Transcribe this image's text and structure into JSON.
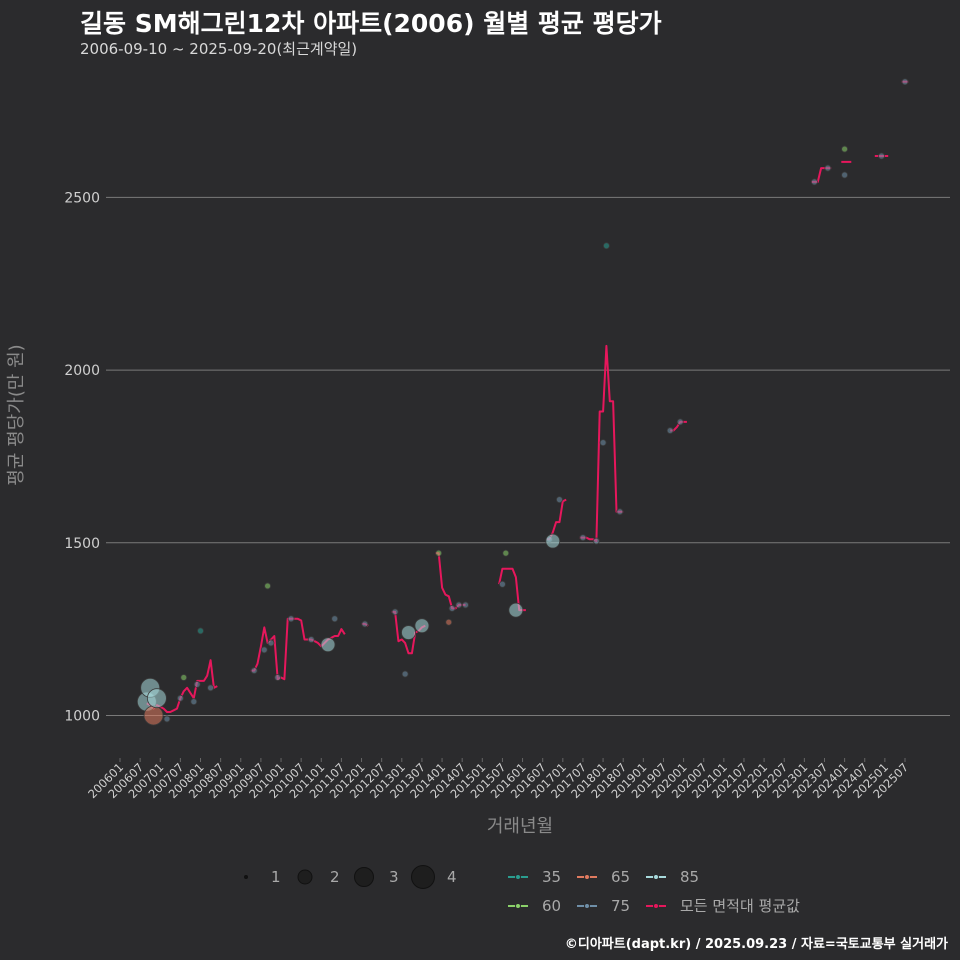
{
  "title": "길동 SM해그린12차 아파트(2006) 월별 평균 평당가",
  "subtitle": "2006-09-10 ~ 2025-09-20(최근계약일)",
  "credit": "©디아파트(dapt.kr) / 2025.09.23 / 자료=국토교통부 실거래가",
  "chart_data": {
    "type": "scatter",
    "xlabel": "거래년월",
    "ylabel": "평균 평당가(만 원)",
    "x_axis": {
      "type": "date-month",
      "range": [
        "2006-01",
        "2025-12"
      ]
    },
    "y_axis": {
      "ticks": [
        1000,
        1500,
        2000,
        2500
      ],
      "range": [
        900,
        2840
      ]
    },
    "x_tick_labels": [
      "200601",
      "200607",
      "200701",
      "200707",
      "200801",
      "200807",
      "200901",
      "200907",
      "201001",
      "201007",
      "201101",
      "201107",
      "201201",
      "201207",
      "201301",
      "201307",
      "201401",
      "201407",
      "201501",
      "201507",
      "201601",
      "201607",
      "201701",
      "201707",
      "201801",
      "201807",
      "201901",
      "201907",
      "202001",
      "202007",
      "202101",
      "202107",
      "202201",
      "202207",
      "202301",
      "202307",
      "202401",
      "202407",
      "202501",
      "202507"
    ],
    "grid": true,
    "size_legend": {
      "title": "",
      "values": [
        1,
        2,
        3,
        4
      ]
    },
    "series_colors": {
      "35": "#2a9d8f",
      "60": "#8bd16a",
      "65": "#e07a5f",
      "75": "#6f8fa8",
      "85": "#a8dadc",
      "avg": "#e6175c"
    },
    "legend_labels": {
      "35": "35",
      "60": "60",
      "65": "65",
      "75": "75",
      "85": "85",
      "avg": "모든 면적대 평균값"
    },
    "scatter_points": [
      {
        "d": "2006-09",
        "y": 1040,
        "s": "85",
        "n": 3
      },
      {
        "d": "2006-10",
        "y": 1080,
        "s": "85",
        "n": 3
      },
      {
        "d": "2006-11",
        "y": 1000,
        "s": "65",
        "n": 3
      },
      {
        "d": "2006-12",
        "y": 1050,
        "s": "85",
        "n": 3
      },
      {
        "d": "2007-03",
        "y": 990,
        "s": "75",
        "n": 1
      },
      {
        "d": "2007-07",
        "y": 1050,
        "s": "75",
        "n": 1
      },
      {
        "d": "2007-08",
        "y": 1110,
        "s": "60",
        "n": 1
      },
      {
        "d": "2007-11",
        "y": 1040,
        "s": "75",
        "n": 1
      },
      {
        "d": "2007-12",
        "y": 1090,
        "s": "75",
        "n": 1
      },
      {
        "d": "2008-01",
        "y": 1245,
        "s": "35",
        "n": 1
      },
      {
        "d": "2008-04",
        "y": 1080,
        "s": "75",
        "n": 1
      },
      {
        "d": "2009-05",
        "y": 1130,
        "s": "75",
        "n": 1
      },
      {
        "d": "2009-08",
        "y": 1190,
        "s": "75",
        "n": 1
      },
      {
        "d": "2009-09",
        "y": 1375,
        "s": "60",
        "n": 1
      },
      {
        "d": "2009-10",
        "y": 1210,
        "s": "75",
        "n": 1
      },
      {
        "d": "2009-12",
        "y": 1110,
        "s": "75",
        "n": 1
      },
      {
        "d": "2010-04",
        "y": 1280,
        "s": "75",
        "n": 1
      },
      {
        "d": "2010-10",
        "y": 1220,
        "s": "75",
        "n": 1
      },
      {
        "d": "2011-03",
        "y": 1205,
        "s": "85",
        "n": 2
      },
      {
        "d": "2011-05",
        "y": 1280,
        "s": "75",
        "n": 1
      },
      {
        "d": "2012-02",
        "y": 1265,
        "s": "75",
        "n": 1
      },
      {
        "d": "2012-11",
        "y": 1300,
        "s": "75",
        "n": 1
      },
      {
        "d": "2013-02",
        "y": 1120,
        "s": "75",
        "n": 1
      },
      {
        "d": "2013-03",
        "y": 1240,
        "s": "85",
        "n": 2
      },
      {
        "d": "2013-07",
        "y": 1260,
        "s": "85",
        "n": 2
      },
      {
        "d": "2013-12",
        "y": 1470,
        "s": "60",
        "n": 1
      },
      {
        "d": "2014-03",
        "y": 1270,
        "s": "65",
        "n": 1
      },
      {
        "d": "2014-04",
        "y": 1310,
        "s": "75",
        "n": 1
      },
      {
        "d": "2014-06",
        "y": 1320,
        "s": "75",
        "n": 1
      },
      {
        "d": "2014-08",
        "y": 1320,
        "s": "75",
        "n": 1
      },
      {
        "d": "2015-07",
        "y": 1380,
        "s": "75",
        "n": 1
      },
      {
        "d": "2015-08",
        "y": 1470,
        "s": "60",
        "n": 1
      },
      {
        "d": "2015-11",
        "y": 1305,
        "s": "85",
        "n": 2
      },
      {
        "d": "2016-09",
        "y": 1510,
        "s": "75",
        "n": 1
      },
      {
        "d": "2016-10",
        "y": 1505,
        "s": "85",
        "n": 2
      },
      {
        "d": "2016-12",
        "y": 1625,
        "s": "75",
        "n": 1
      },
      {
        "d": "2017-07",
        "y": 1515,
        "s": "75",
        "n": 1
      },
      {
        "d": "2017-11",
        "y": 1505,
        "s": "75",
        "n": 1
      },
      {
        "d": "2018-01",
        "y": 1790,
        "s": "75",
        "n": 1
      },
      {
        "d": "2018-02",
        "y": 2360,
        "s": "35",
        "n": 1
      },
      {
        "d": "2018-06",
        "y": 1590,
        "s": "75",
        "n": 1
      },
      {
        "d": "2019-09",
        "y": 1825,
        "s": "75",
        "n": 1
      },
      {
        "d": "2019-12",
        "y": 1850,
        "s": "75",
        "n": 1
      },
      {
        "d": "2023-04",
        "y": 2545,
        "s": "75",
        "n": 1
      },
      {
        "d": "2023-08",
        "y": 2585,
        "s": "75",
        "n": 1
      },
      {
        "d": "2024-01",
        "y": 2640,
        "s": "60",
        "n": 1
      },
      {
        "d": "2024-01",
        "y": 2565,
        "s": "75",
        "n": 1
      },
      {
        "d": "2024-12",
        "y": 2620,
        "s": "75",
        "n": 1
      },
      {
        "d": "2025-07",
        "y": 2835,
        "s": "75",
        "n": 1
      }
    ],
    "avg_segments": [
      [
        [
          "2006-09",
          1035
        ],
        [
          "2006-10",
          1030
        ],
        [
          "2006-11",
          1020
        ],
        [
          "2006-12",
          1030
        ],
        [
          "2007-01",
          1025
        ],
        [
          "2007-02",
          1020
        ],
        [
          "2007-03",
          1010
        ],
        [
          "2007-04",
          1010
        ],
        [
          "2007-05",
          1015
        ],
        [
          "2007-06",
          1020
        ],
        [
          "2007-07",
          1050
        ],
        [
          "2007-08",
          1070
        ],
        [
          "2007-09",
          1080
        ],
        [
          "2007-10",
          1065
        ],
        [
          "2007-11",
          1050
        ],
        [
          "2007-12",
          1100
        ],
        [
          "2008-01",
          1100
        ],
        [
          "2008-02",
          1100
        ],
        [
          "2008-03",
          1115
        ],
        [
          "2008-04",
          1160
        ],
        [
          "2008-05",
          1080
        ],
        [
          "2008-06",
          1085
        ]
      ],
      [
        [
          "2009-04",
          1130
        ],
        [
          "2009-05",
          1130
        ],
        [
          "2009-06",
          1150
        ],
        [
          "2009-07",
          1200
        ],
        [
          "2009-08",
          1255
        ],
        [
          "2009-09",
          1210
        ],
        [
          "2009-10",
          1220
        ],
        [
          "2009-11",
          1230
        ],
        [
          "2009-12",
          1105
        ],
        [
          "2010-01",
          1110
        ],
        [
          "2010-02",
          1105
        ],
        [
          "2010-03",
          1280
        ],
        [
          "2010-04",
          1280
        ],
        [
          "2010-05",
          1280
        ],
        [
          "2010-06",
          1280
        ],
        [
          "2010-07",
          1275
        ],
        [
          "2010-08",
          1220
        ],
        [
          "2010-09",
          1220
        ],
        [
          "2010-10",
          1220
        ],
        [
          "2010-11",
          1215
        ],
        [
          "2010-12",
          1210
        ],
        [
          "2011-01",
          1200
        ],
        [
          "2011-02",
          1210
        ],
        [
          "2011-03",
          1220
        ],
        [
          "2011-04",
          1225
        ],
        [
          "2011-05",
          1230
        ],
        [
          "2011-06",
          1230
        ],
        [
          "2011-07",
          1250
        ],
        [
          "2011-08",
          1235
        ]
      ],
      [
        [
          "2012-01",
          1265
        ],
        [
          "2012-02",
          1265
        ],
        [
          "2012-03",
          1260
        ]
      ],
      [
        [
          "2012-10",
          1300
        ],
        [
          "2012-11",
          1300
        ],
        [
          "2012-12",
          1215
        ],
        [
          "2013-01",
          1220
        ],
        [
          "2013-02",
          1210
        ],
        [
          "2013-03",
          1180
        ],
        [
          "2013-04",
          1180
        ],
        [
          "2013-05",
          1240
        ],
        [
          "2013-06",
          1245
        ],
        [
          "2013-07",
          1255
        ],
        [
          "2013-08",
          1260
        ]
      ],
      [
        [
          "2013-11",
          1470
        ],
        [
          "2013-12",
          1470
        ],
        [
          "2014-01",
          1370
        ],
        [
          "2014-02",
          1350
        ],
        [
          "2014-03",
          1345
        ],
        [
          "2014-04",
          1310
        ],
        [
          "2014-05",
          1310
        ],
        [
          "2014-06",
          1320
        ],
        [
          "2014-07",
          1320
        ],
        [
          "2014-08",
          1320
        ]
      ],
      [
        [
          "2015-06",
          1380
        ],
        [
          "2015-07",
          1425
        ],
        [
          "2015-08",
          1425
        ],
        [
          "2015-09",
          1425
        ],
        [
          "2015-10",
          1425
        ],
        [
          "2015-11",
          1400
        ],
        [
          "2015-12",
          1305
        ],
        [
          "2016-01",
          1305
        ],
        [
          "2016-02",
          1305
        ]
      ],
      [
        [
          "2016-08",
          1510
        ],
        [
          "2016-09",
          1510
        ],
        [
          "2016-10",
          1530
        ],
        [
          "2016-11",
          1560
        ],
        [
          "2016-12",
          1560
        ],
        [
          "2017-01",
          1620
        ],
        [
          "2017-02",
          1625
        ]
      ],
      [
        [
          "2017-06",
          1515
        ],
        [
          "2017-07",
          1515
        ],
        [
          "2017-08",
          1515
        ],
        [
          "2017-09",
          1510
        ],
        [
          "2017-10",
          1510
        ],
        [
          "2017-11",
          1505
        ],
        [
          "2017-12",
          1880
        ],
        [
          "2018-01",
          1880
        ],
        [
          "2018-02",
          2070
        ],
        [
          "2018-03",
          1910
        ],
        [
          "2018-04",
          1910
        ],
        [
          "2018-05",
          1590
        ],
        [
          "2018-06",
          1590
        ],
        [
          "2018-07",
          1590
        ]
      ],
      [
        [
          "2019-09",
          1825
        ],
        [
          "2019-10",
          1825
        ],
        [
          "2019-11",
          1835
        ],
        [
          "2019-12",
          1850
        ],
        [
          "2020-01",
          1850
        ],
        [
          "2020-02",
          1850
        ]
      ],
      [
        [
          "2023-03",
          2545
        ],
        [
          "2023-04",
          2545
        ],
        [
          "2023-05",
          2545
        ],
        [
          "2023-06",
          2585
        ],
        [
          "2023-07",
          2585
        ],
        [
          "2023-08",
          2585
        ],
        [
          "2023-09",
          2585
        ]
      ],
      [
        [
          "2023-12",
          2603
        ],
        [
          "2024-01",
          2603
        ],
        [
          "2024-02",
          2603
        ],
        [
          "2024-03",
          2603
        ]
      ],
      [
        [
          "2024-10",
          2620
        ],
        [
          "2024-11",
          2620
        ],
        [
          "2024-12",
          2620
        ],
        [
          "2025-01",
          2620
        ],
        [
          "2025-02",
          2620
        ]
      ],
      [
        [
          "2025-06",
          2835
        ],
        [
          "2025-07",
          2835
        ],
        [
          "2025-08",
          2835
        ]
      ]
    ]
  }
}
